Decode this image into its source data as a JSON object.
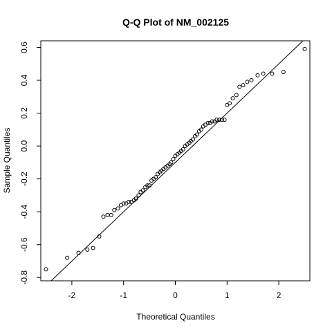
{
  "chart_data": {
    "type": "scatter",
    "title": "Q-Q Plot of NM_002125",
    "xlabel": "Theoretical Quantiles",
    "ylabel": "Sample Quantiles",
    "xlim": [
      -2.6,
      2.6
    ],
    "ylim": [
      -0.82,
      0.64
    ],
    "x_ticks": [
      -2,
      -1,
      0,
      1,
      2
    ],
    "x_tick_labels": [
      "-2",
      "-1",
      "0",
      "1",
      "2"
    ],
    "y_ticks": [
      -0.8,
      -0.6,
      -0.4,
      -0.2,
      0.0,
      0.2,
      0.4,
      0.6
    ],
    "y_tick_labels": [
      "-0.8",
      "-0.6",
      "-0.4",
      "-0.2",
      "0.0",
      "0.2",
      "0.4",
      "0.6"
    ],
    "grid": false,
    "reference_line": {
      "slope": 0.3,
      "intercept": -0.1
    },
    "points": {
      "x": [
        -2.5,
        -2.09,
        -1.87,
        -1.7,
        -1.59,
        -1.47,
        -1.39,
        -1.31,
        -1.24,
        -1.18,
        -1.11,
        -1.05,
        -1.0,
        -0.95,
        -0.9,
        -0.85,
        -0.8,
        -0.76,
        -0.71,
        -0.67,
        -0.63,
        -0.58,
        -0.54,
        -0.5,
        -0.46,
        -0.42,
        -0.38,
        -0.34,
        -0.3,
        -0.27,
        -0.23,
        -0.19,
        -0.15,
        -0.11,
        -0.08,
        -0.04,
        0.0,
        0.04,
        0.08,
        0.11,
        0.15,
        0.19,
        0.23,
        0.27,
        0.3,
        0.34,
        0.38,
        0.42,
        0.46,
        0.5,
        0.54,
        0.58,
        0.63,
        0.67,
        0.71,
        0.76,
        0.8,
        0.85,
        0.9,
        0.95,
        1.0,
        1.05,
        1.11,
        1.18,
        1.24,
        1.31,
        1.39,
        1.47,
        1.59,
        1.7,
        1.87,
        2.09,
        2.5
      ],
      "y": [
        -0.75,
        -0.68,
        -0.65,
        -0.63,
        -0.62,
        -0.55,
        -0.43,
        -0.42,
        -0.42,
        -0.39,
        -0.38,
        -0.36,
        -0.35,
        -0.35,
        -0.34,
        -0.34,
        -0.33,
        -0.32,
        -0.3,
        -0.28,
        -0.27,
        -0.25,
        -0.24,
        -0.24,
        -0.21,
        -0.2,
        -0.19,
        -0.17,
        -0.16,
        -0.15,
        -0.14,
        -0.13,
        -0.12,
        -0.11,
        -0.1,
        -0.08,
        -0.06,
        -0.05,
        -0.04,
        -0.03,
        -0.02,
        0.0,
        0.01,
        0.02,
        0.03,
        0.04,
        0.06,
        0.07,
        0.09,
        0.1,
        0.12,
        0.13,
        0.14,
        0.14,
        0.15,
        0.15,
        0.16,
        0.16,
        0.16,
        0.16,
        0.25,
        0.26,
        0.29,
        0.31,
        0.36,
        0.37,
        0.39,
        0.4,
        0.43,
        0.44,
        0.44,
        0.45,
        0.59
      ]
    }
  }
}
